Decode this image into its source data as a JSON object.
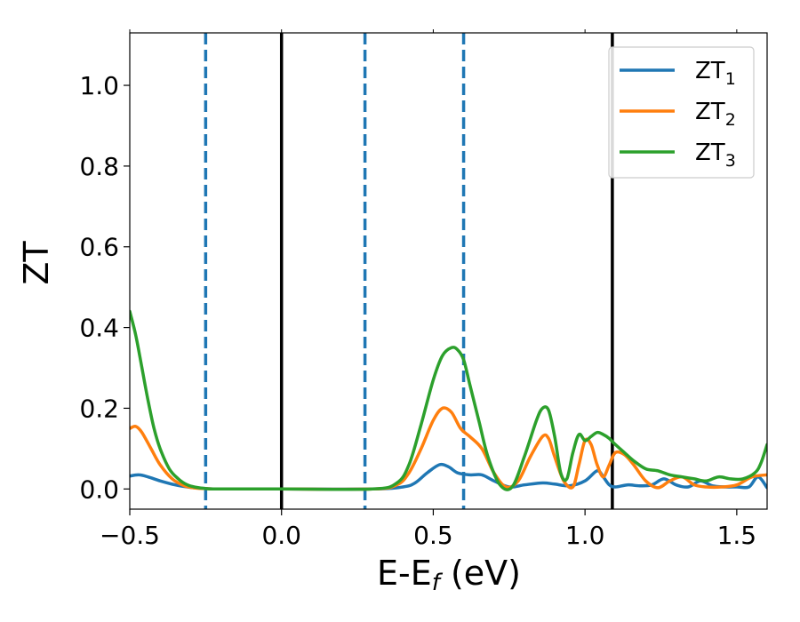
{
  "chart_data": {
    "type": "line",
    "xlabel_main": "E-E",
    "xlabel_sub": "f",
    "xlabel_unit": " (eV)",
    "ylabel": "ZT",
    "xlim": [
      -0.5,
      1.6
    ],
    "ylim": [
      -0.05,
      1.13
    ],
    "xticks": [
      -0.5,
      0.0,
      0.5,
      1.0,
      1.5
    ],
    "xtick_labels": [
      "−0.5",
      "0.0",
      "0.5",
      "1.0",
      "1.5"
    ],
    "yticks": [
      0.0,
      0.2,
      0.4,
      0.6,
      0.8,
      1.0
    ],
    "ytick_labels": [
      "0.0",
      "0.2",
      "0.4",
      "0.6",
      "0.8",
      "1.0"
    ],
    "grid": false,
    "legend_position": "top-right",
    "vlines_dashed": [
      -0.25,
      0.275,
      0.6
    ],
    "vlines_solid": [
      0.0,
      1.09
    ],
    "colors": {
      "dashed": "#1f77b4",
      "solid": "#000000"
    },
    "series": [
      {
        "name": "ZT",
        "name_sub": "1",
        "color": "#1f77b4",
        "x": [
          -0.5,
          -0.47,
          -0.44,
          -0.4,
          -0.35,
          -0.3,
          -0.25,
          -0.2,
          0.0,
          0.3,
          0.4,
          0.44,
          0.48,
          0.52,
          0.55,
          0.58,
          0.62,
          0.66,
          0.7,
          0.75,
          0.8,
          0.86,
          0.9,
          0.95,
          1.0,
          1.04,
          1.06,
          1.08,
          1.1,
          1.14,
          1.18,
          1.22,
          1.26,
          1.3,
          1.34,
          1.38,
          1.42,
          1.46,
          1.5,
          1.54,
          1.57,
          1.6
        ],
        "y": [
          0.032,
          0.035,
          0.03,
          0.02,
          0.01,
          0.004,
          0.001,
          0.0,
          0.0,
          0.0,
          0.005,
          0.015,
          0.04,
          0.06,
          0.055,
          0.04,
          0.035,
          0.035,
          0.02,
          0.005,
          0.01,
          0.015,
          0.012,
          0.008,
          0.02,
          0.045,
          0.03,
          0.01,
          0.005,
          0.01,
          0.008,
          0.01,
          0.025,
          0.01,
          0.005,
          0.02,
          0.008,
          0.005,
          0.005,
          0.005,
          0.03,
          0.003
        ]
      },
      {
        "name": "ZT",
        "name_sub": "2",
        "color": "#ff7f0e",
        "x": [
          -0.5,
          -0.48,
          -0.46,
          -0.43,
          -0.4,
          -0.36,
          -0.32,
          -0.28,
          -0.25,
          -0.2,
          0.0,
          0.3,
          0.38,
          0.42,
          0.46,
          0.5,
          0.53,
          0.56,
          0.59,
          0.62,
          0.66,
          0.7,
          0.74,
          0.78,
          0.82,
          0.86,
          0.88,
          0.9,
          0.93,
          0.96,
          0.98,
          1.0,
          1.02,
          1.04,
          1.06,
          1.08,
          1.1,
          1.13,
          1.16,
          1.2,
          1.24,
          1.28,
          1.32,
          1.36,
          1.4,
          1.45,
          1.5,
          1.55,
          1.6
        ],
        "y": [
          0.15,
          0.155,
          0.14,
          0.1,
          0.06,
          0.025,
          0.008,
          0.002,
          0.001,
          0.0,
          0.0,
          0.0,
          0.01,
          0.04,
          0.1,
          0.17,
          0.2,
          0.19,
          0.15,
          0.13,
          0.1,
          0.04,
          0.005,
          0.02,
          0.08,
          0.13,
          0.125,
          0.08,
          0.02,
          0.005,
          0.06,
          0.12,
          0.11,
          0.06,
          0.03,
          0.06,
          0.09,
          0.085,
          0.06,
          0.02,
          0.003,
          0.02,
          0.03,
          0.01,
          0.005,
          0.005,
          0.01,
          0.03,
          0.035
        ]
      },
      {
        "name": "ZT",
        "name_sub": "3",
        "color": "#2ca02c",
        "x": [
          -0.5,
          -0.48,
          -0.46,
          -0.44,
          -0.42,
          -0.4,
          -0.37,
          -0.34,
          -0.31,
          -0.28,
          -0.25,
          -0.2,
          0.0,
          0.3,
          0.38,
          0.42,
          0.46,
          0.5,
          0.53,
          0.56,
          0.58,
          0.6,
          0.62,
          0.65,
          0.68,
          0.72,
          0.76,
          0.8,
          0.84,
          0.86,
          0.88,
          0.9,
          0.92,
          0.94,
          0.96,
          0.98,
          1.0,
          1.02,
          1.04,
          1.06,
          1.08,
          1.1,
          1.13,
          1.16,
          1.2,
          1.24,
          1.28,
          1.32,
          1.36,
          1.4,
          1.44,
          1.48,
          1.52,
          1.56,
          1.58,
          1.6
        ],
        "y": [
          0.44,
          0.38,
          0.3,
          0.22,
          0.15,
          0.1,
          0.05,
          0.025,
          0.01,
          0.004,
          0.001,
          0.0,
          0.0,
          0.0,
          0.015,
          0.06,
          0.16,
          0.27,
          0.33,
          0.35,
          0.345,
          0.32,
          0.26,
          0.17,
          0.08,
          0.01,
          0.005,
          0.08,
          0.17,
          0.2,
          0.195,
          0.13,
          0.04,
          0.025,
          0.09,
          0.135,
          0.12,
          0.13,
          0.14,
          0.135,
          0.125,
          0.11,
          0.09,
          0.07,
          0.05,
          0.045,
          0.035,
          0.03,
          0.025,
          0.02,
          0.03,
          0.025,
          0.025,
          0.04,
          0.065,
          0.11
        ]
      }
    ]
  }
}
